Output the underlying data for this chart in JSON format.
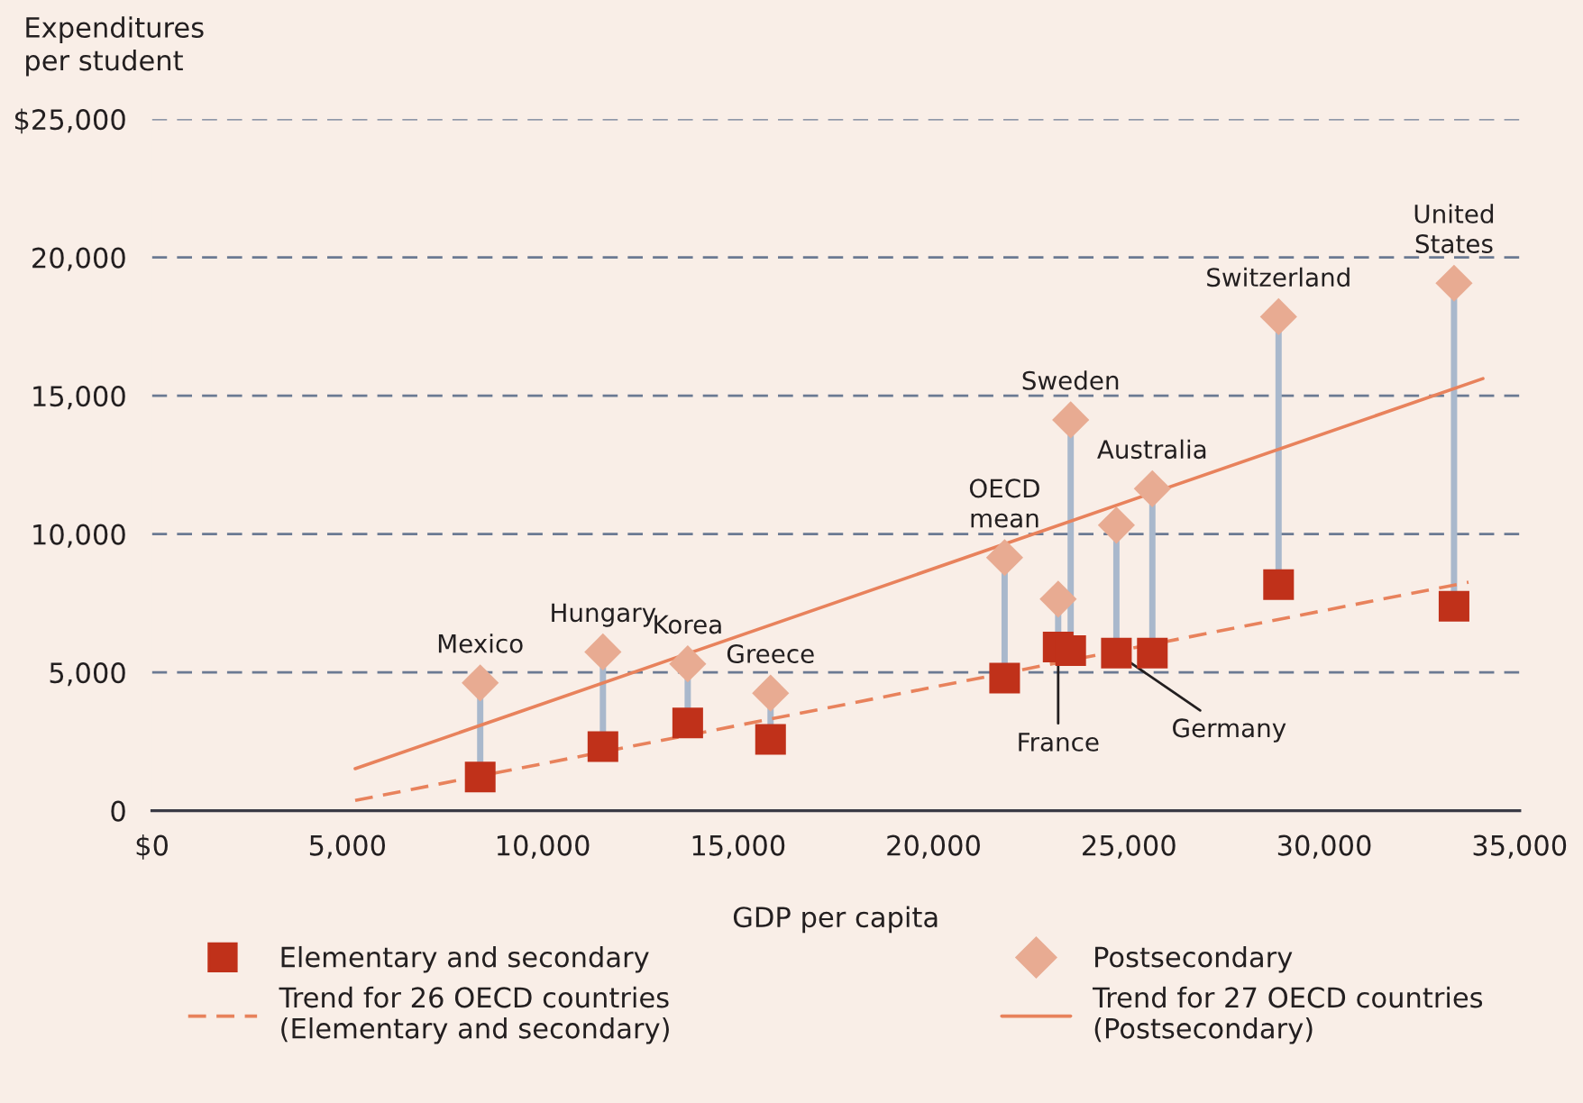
{
  "chart_data": {
    "type": "scatter",
    "xlabel": "GDP per capita",
    "ylabel": "Expenditures\nper student",
    "x": [
      8400,
      11540,
      13710,
      15830,
      21820,
      23190,
      23510,
      24680,
      25600,
      28830,
      33320
    ],
    "series": [
      {
        "name": "Elementary and secondary",
        "marker": "square",
        "color": "#c0311a",
        "values": [
          1220,
          2320,
          3170,
          2580,
          4790,
          5920,
          5790,
          5700,
          5700,
          8170,
          7390
        ]
      },
      {
        "name": "Postsecondary",
        "marker": "diamond",
        "color": "#e8ab92",
        "values": [
          4620,
          5740,
          5310,
          4250,
          9150,
          7650,
          14130,
          10320,
          11640,
          17860,
          19070
        ]
      },
      {
        "name": "Trend for 26 OECD countries\n(Elementary and secondary)",
        "type": "line",
        "line_style": "dashed",
        "color": "#e8825c",
        "x": [
          5200,
          33690
        ],
        "values": [
          370,
          8260
        ]
      },
      {
        "name": "Trend for 27 OECD countries\n(Postsecondary)",
        "type": "line",
        "line_style": "solid",
        "color": "#e8825c",
        "x": [
          5200,
          34060
        ],
        "values": [
          1520,
          15620
        ]
      }
    ],
    "annotations": [
      {
        "text": "Mexico",
        "x": 8400,
        "y": 4620
      },
      {
        "text": "Hungary",
        "x": 11540,
        "y": 5740
      },
      {
        "text": "Korea",
        "x": 13710,
        "y": 5310
      },
      {
        "text": "Greece",
        "x": 15830,
        "y": 4250
      },
      {
        "text": "OECD\nmean",
        "x": 21820,
        "y": 9150
      },
      {
        "text": "France",
        "x": 23190,
        "y": 5920
      },
      {
        "text": "Sweden",
        "x": 23510,
        "y": 14130
      },
      {
        "text": "Germany",
        "x": 24680,
        "y": 5700
      },
      {
        "text": "Australia",
        "x": 25600,
        "y": 11640
      },
      {
        "text": "Switzerland",
        "x": 28830,
        "y": 17860
      },
      {
        "text": "United\nStates",
        "x": 33320,
        "y": 19070
      }
    ],
    "xlim": [
      0,
      35000
    ],
    "xticks": [
      {
        "value": 0,
        "label": "$0"
      },
      {
        "value": 5000,
        "label": "5,000"
      },
      {
        "value": 10000,
        "label": "10,000"
      },
      {
        "value": 15000,
        "label": "15,000"
      },
      {
        "value": 20000,
        "label": "20,000"
      },
      {
        "value": 25000,
        "label": "25,000"
      },
      {
        "value": 30000,
        "label": "30,000"
      },
      {
        "value": 35000,
        "label": "35,000"
      }
    ],
    "ylim": [
      0,
      25000
    ],
    "yticks": [
      {
        "value": 0,
        "label": "0"
      },
      {
        "value": 5000,
        "label": "5,000"
      },
      {
        "value": 10000,
        "label": "10,000"
      },
      {
        "value": 15000,
        "label": "15,000"
      },
      {
        "value": 20000,
        "label": "20,000"
      },
      {
        "value": 25000,
        "label": "$25,000"
      }
    ],
    "grid": "y",
    "legend": "bottom"
  }
}
